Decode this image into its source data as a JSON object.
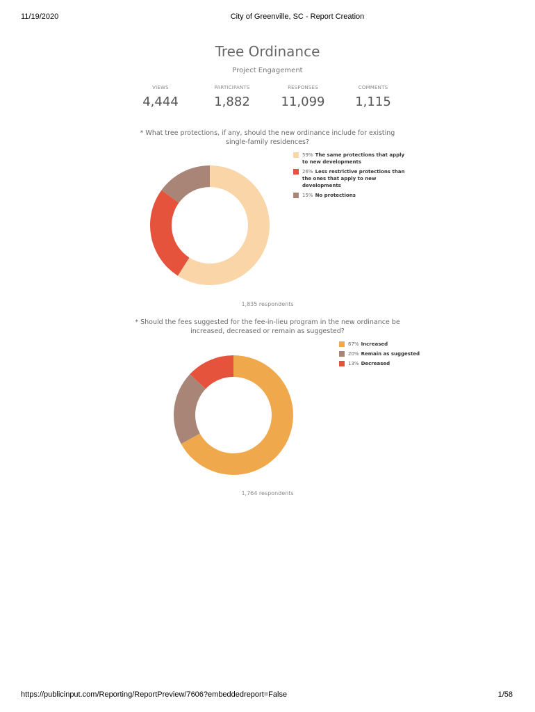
{
  "header": {
    "date": "11/19/2020",
    "title": "City of Greenville, SC - Report Creation"
  },
  "report": {
    "title": "Tree Ordinance",
    "subtitle": "Project Engagement",
    "stats": [
      {
        "label": "VIEWS",
        "value": "4,444"
      },
      {
        "label": "PARTICIPANTS",
        "value": "1,882"
      },
      {
        "label": "RESPONSES",
        "value": "11,099"
      },
      {
        "label": "COMMENTS",
        "value": "1,115"
      }
    ]
  },
  "chart_data": [
    {
      "type": "pie",
      "title": "* What tree protections, if any, should the new ordinance include for existing single-family residences?",
      "categories": [
        "The same protections that apply to new developments",
        "Less restrictive protections than the ones that apply to new developments",
        "No protections"
      ],
      "values": [
        59,
        26,
        15
      ],
      "value_labels": [
        "59%",
        "26%",
        "15%"
      ],
      "colors": [
        "#f9d5a7",
        "#e5533d",
        "#a88577"
      ],
      "note": "1,835 respondents"
    },
    {
      "type": "pie",
      "title": "* Should the fees suggested for the fee-in-lieu program in the new ordinance be increased, decreased or remain as suggested?",
      "categories": [
        "Increased",
        "Remain as suggested",
        "Decreased"
      ],
      "values": [
        67,
        20,
        13
      ],
      "value_labels": [
        "67%",
        "20%",
        "13%"
      ],
      "colors": [
        "#f0a84c",
        "#a88577",
        "#e5533d"
      ],
      "note": "1,764 respondents"
    }
  ],
  "footer": {
    "url": "https://publicinput.com/Reporting/ReportPreview/7606?embeddedreport=False",
    "page": "1/58"
  }
}
